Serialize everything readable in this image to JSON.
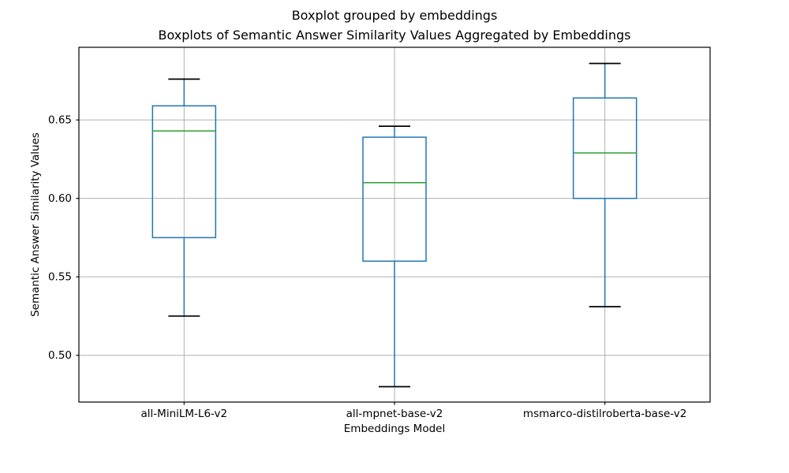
{
  "chart_data": {
    "type": "boxplot",
    "suptitle": "Boxplot grouped by embeddings",
    "title": "Boxplots of Semantic Answer Similarity Values Aggregated by Embeddings",
    "xlabel": "Embeddings Model",
    "ylabel": "Semantic Answer Similarity Values",
    "categories": [
      "all-MiniLM-L6-v2",
      "all-mpnet-base-v2",
      "msmarco-distilroberta-base-v2"
    ],
    "series": [
      {
        "name": "all-MiniLM-L6-v2",
        "whisker_low": 0.525,
        "q1": 0.575,
        "median": 0.643,
        "q3": 0.659,
        "whisker_high": 0.676
      },
      {
        "name": "all-mpnet-base-v2",
        "whisker_low": 0.48,
        "q1": 0.56,
        "median": 0.61,
        "q3": 0.639,
        "whisker_high": 0.646
      },
      {
        "name": "msmarco-distilroberta-base-v2",
        "whisker_low": 0.531,
        "q1": 0.6,
        "median": 0.629,
        "q3": 0.664,
        "whisker_high": 0.686
      }
    ],
    "y_ticks": [
      0.5,
      0.55,
      0.6,
      0.65
    ],
    "y_tick_labels": [
      "0.50",
      "0.55",
      "0.60",
      "0.65"
    ],
    "ylim": [
      0.4702,
      0.6963
    ],
    "xlim": [
      0.5,
      3.5
    ],
    "grid": true,
    "legend": "none",
    "colors": {
      "box": "#1f77b4",
      "whisker": "#1f77b4",
      "median": "#2ca02c",
      "cap": "#000000",
      "grid": "#b0b0b0",
      "frame": "#000000",
      "background": "#ffffff",
      "text": "#000000"
    }
  }
}
